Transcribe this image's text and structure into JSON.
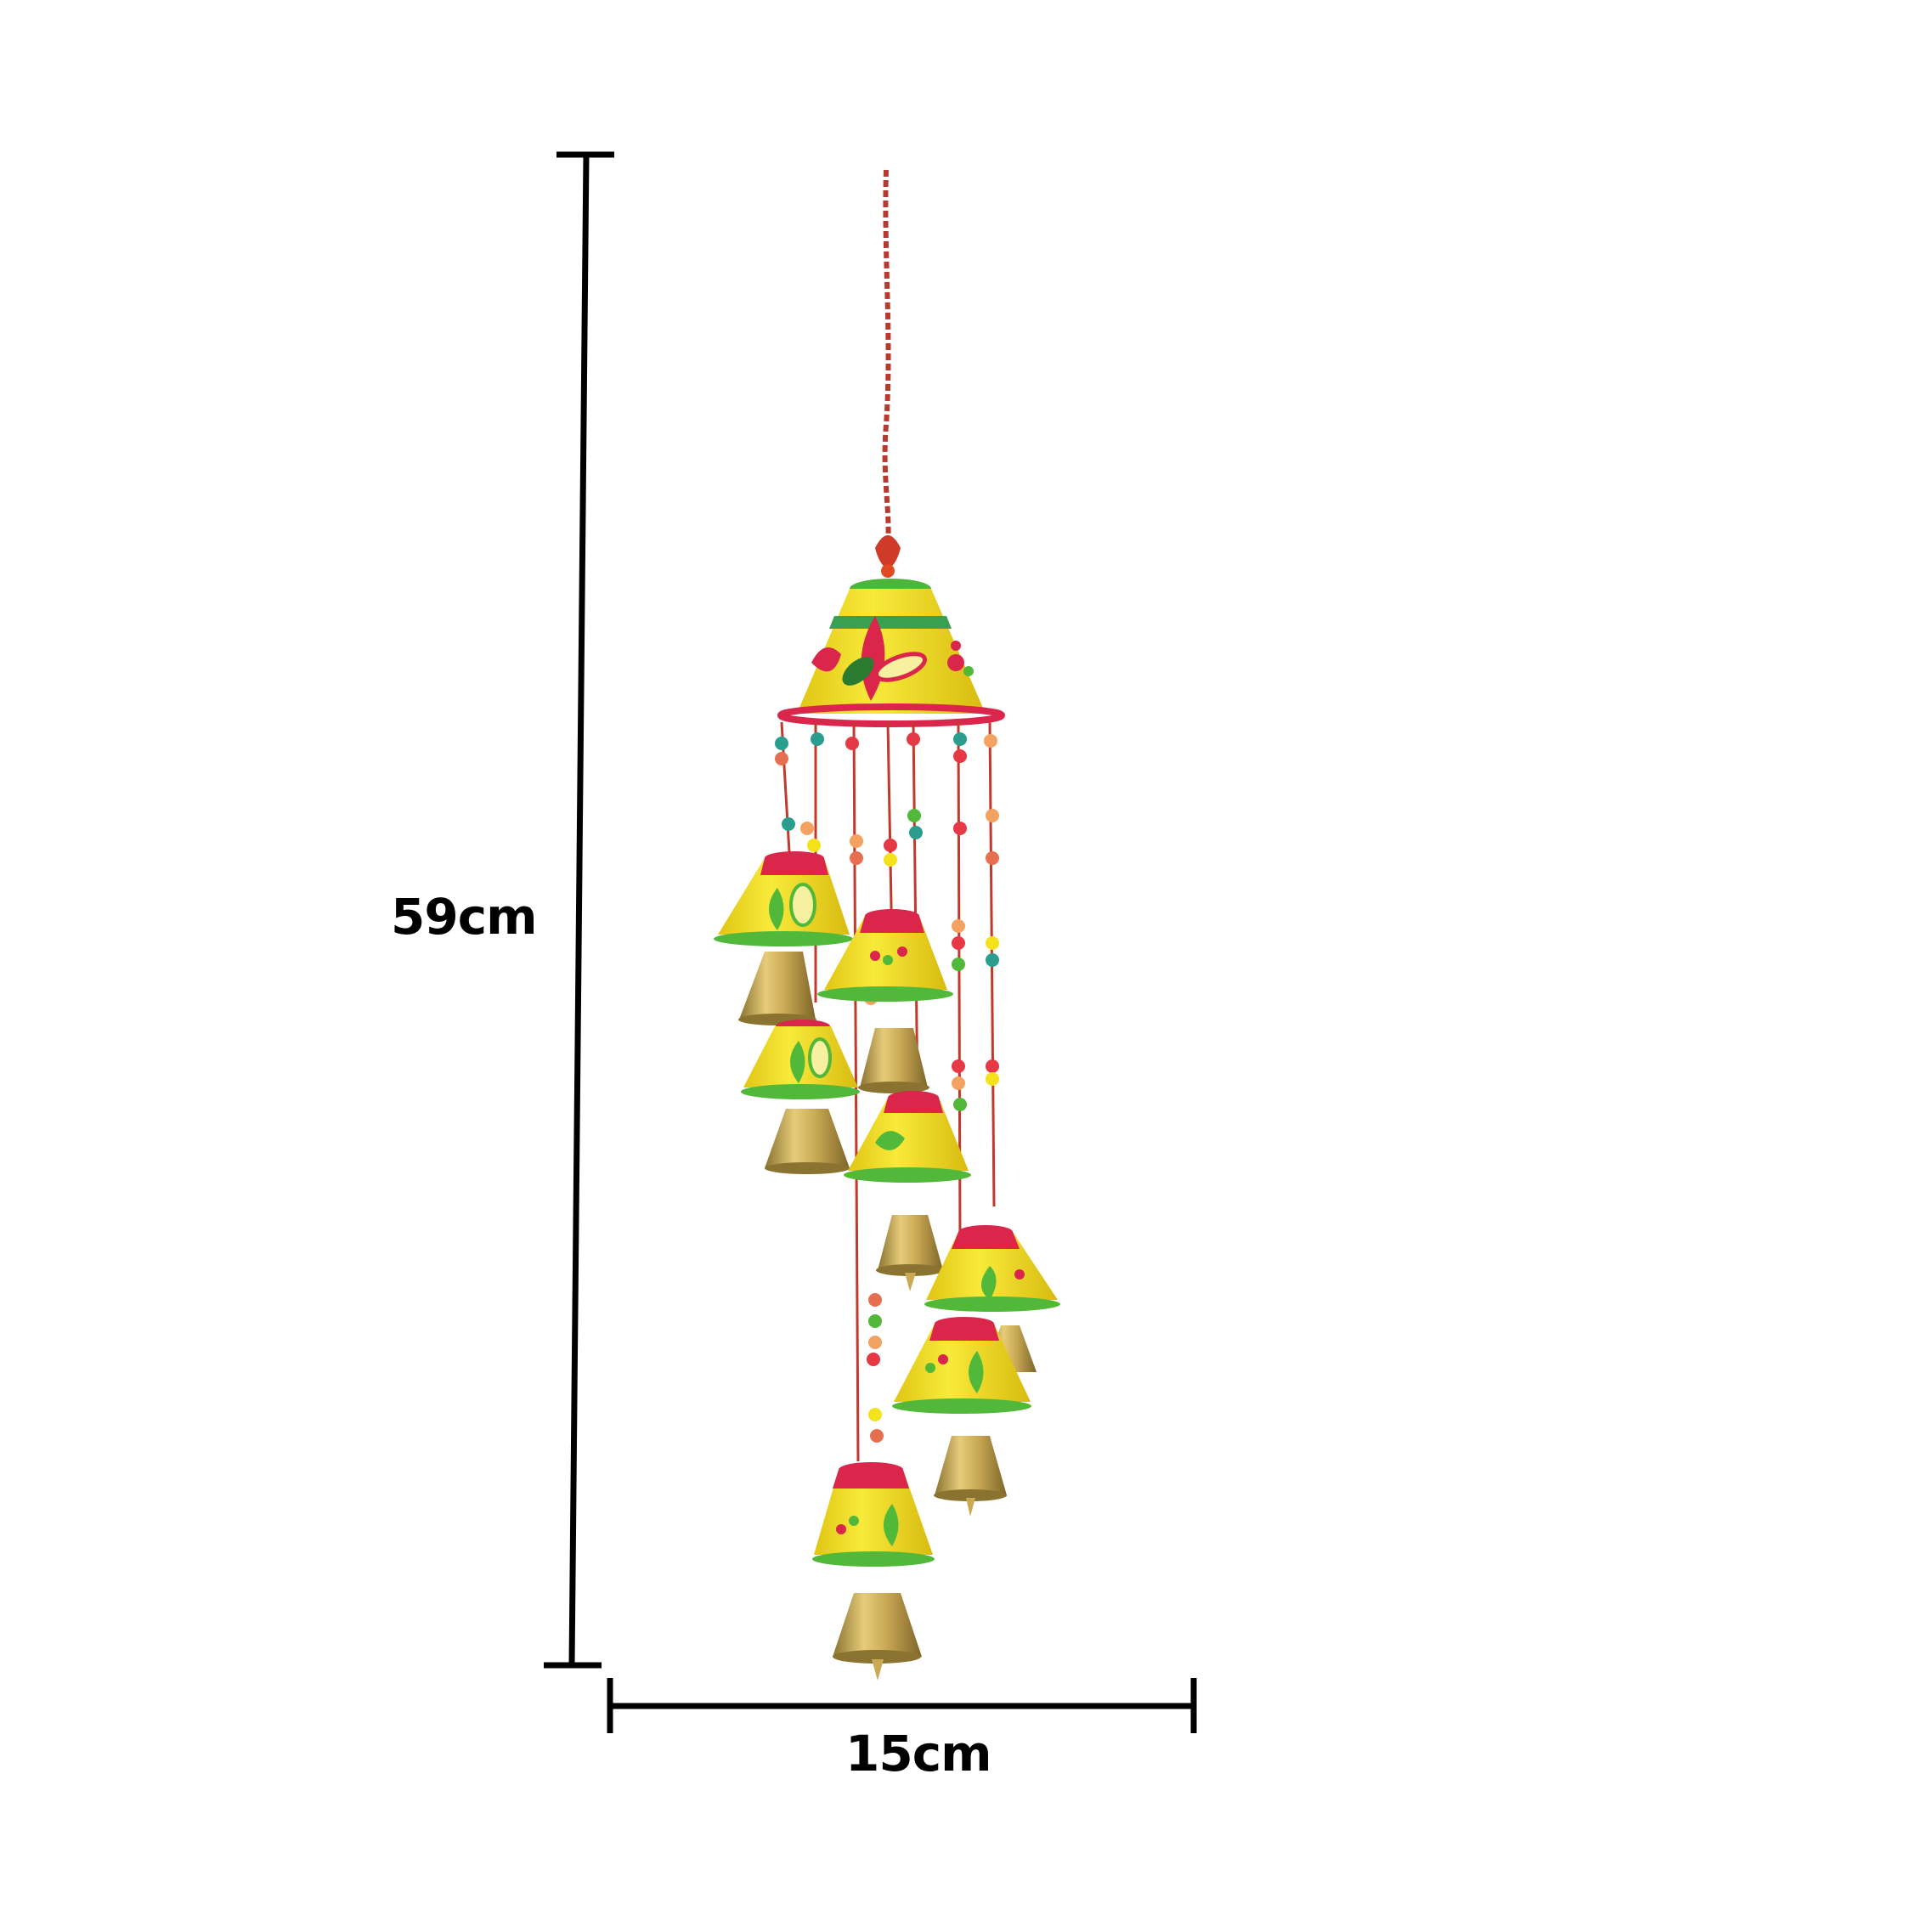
{
  "dimensions": {
    "height_label": "59cm",
    "width_label": "15cm"
  },
  "colors": {
    "background": "#ffffff",
    "dimension_line": "#000000",
    "bell_yellow": "#f4e21c",
    "bell_red": "#d9264a",
    "bell_green": "#52b83a",
    "brass": "#c8a850",
    "string": "#b83a2e"
  },
  "product": {
    "kind": "hanging-bell-wind-chime",
    "bell_tiers": 8
  }
}
